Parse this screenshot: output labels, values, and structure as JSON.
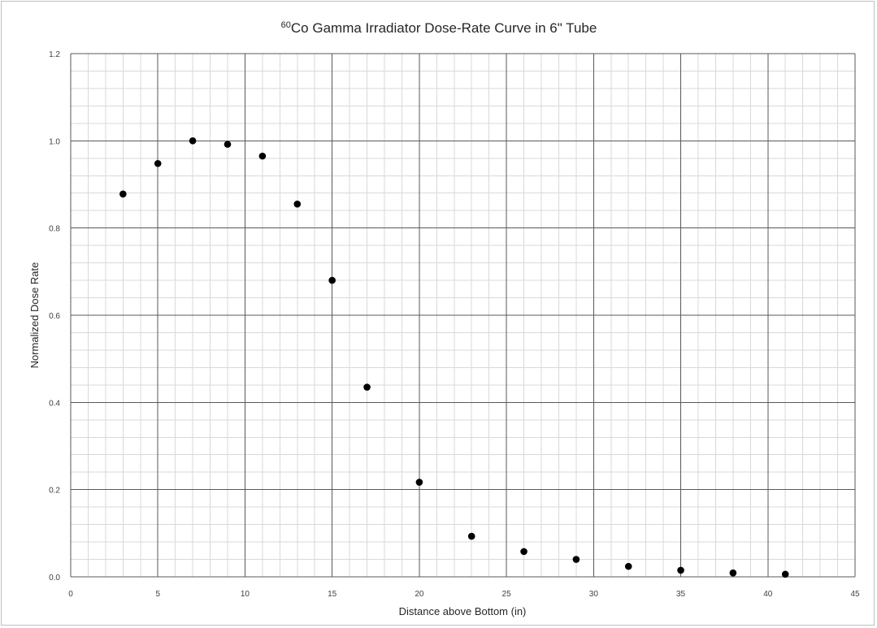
{
  "chart_data": {
    "type": "scatter",
    "title_sup": "60",
    "title_main": "Co Gamma Irradiator Dose-Rate Curve in 6\" Tube",
    "xlabel": "Distance above Bottom (in)",
    "ylabel": "Normalized Dose Rate",
    "xlim": [
      0,
      45
    ],
    "ylim": [
      0,
      1.2
    ],
    "x_ticks": [
      "0",
      "5",
      "10",
      "15",
      "20",
      "25",
      "30",
      "35",
      "40",
      "45"
    ],
    "y_ticks": [
      "0.0",
      "0.2",
      "0.4",
      "0.6",
      "0.8",
      "1.0",
      "1.2"
    ],
    "x_major_step": 5,
    "x_minor_step": 1,
    "y_major_step": 0.2,
    "y_minor_step": 0.04,
    "grid": true,
    "legend": "none",
    "marker_color": "#000000",
    "major_grid_color": "#595959",
    "minor_grid_color": "#d9d9d9",
    "points": [
      {
        "x": 3,
        "y": 0.878
      },
      {
        "x": 5,
        "y": 0.948
      },
      {
        "x": 7,
        "y": 1.0
      },
      {
        "x": 9,
        "y": 0.992
      },
      {
        "x": 11,
        "y": 0.965
      },
      {
        "x": 13,
        "y": 0.855
      },
      {
        "x": 15,
        "y": 0.68
      },
      {
        "x": 17,
        "y": 0.435
      },
      {
        "x": 20,
        "y": 0.217
      },
      {
        "x": 23,
        "y": 0.093
      },
      {
        "x": 26,
        "y": 0.058
      },
      {
        "x": 29,
        "y": 0.04
      },
      {
        "x": 32,
        "y": 0.024
      },
      {
        "x": 35,
        "y": 0.015
      },
      {
        "x": 38,
        "y": 0.009
      },
      {
        "x": 41,
        "y": 0.006
      }
    ]
  }
}
